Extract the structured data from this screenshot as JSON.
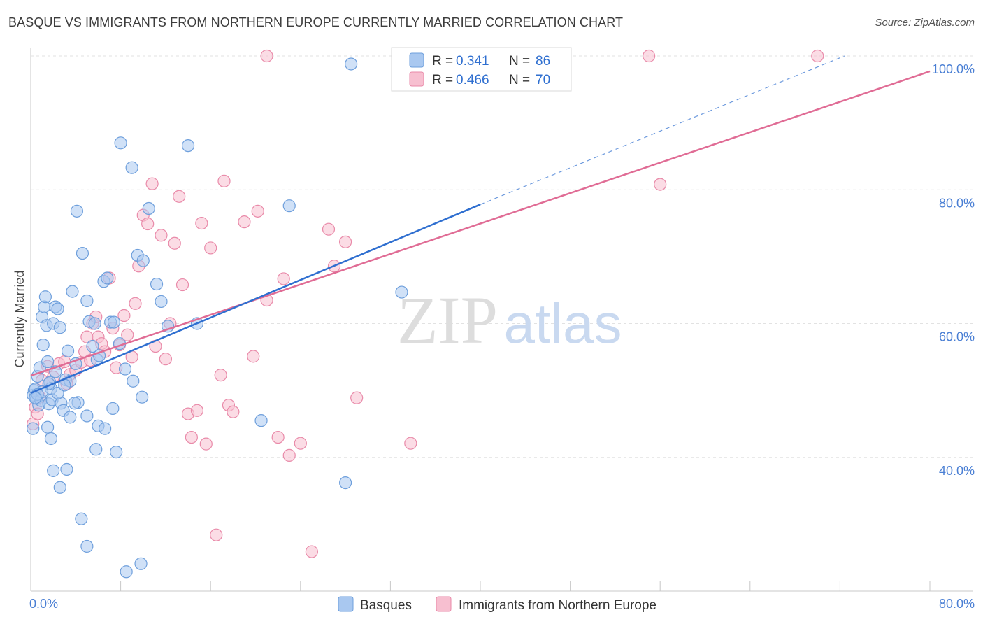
{
  "title": "BASQUE VS IMMIGRANTS FROM NORTHERN EUROPE CURRENTLY MARRIED CORRELATION CHART",
  "source": "Source: ZipAtlas.com",
  "watermark": {
    "zip": "ZIP",
    "atlas": "atlas"
  },
  "colors": {
    "blue_fill": "#a9c8f0",
    "blue_stroke": "#6e9fdc",
    "blue_line": "#2f6fd0",
    "pink_fill": "#f7bfd0",
    "pink_stroke": "#e98aa9",
    "pink_line": "#e06c95",
    "grid": "#e2e2e2",
    "tick_text": "#4a7fd4"
  },
  "legend_top": [
    {
      "r_label": "R =",
      "r_value": "0.341",
      "n_label": "N =",
      "n_value": "86"
    },
    {
      "r_label": "R =",
      "r_value": "0.466",
      "n_label": "N =",
      "n_value": "70"
    }
  ],
  "chart_data": {
    "type": "scatter",
    "title": "BASQUE VS IMMIGRANTS FROM NORTHERN EUROPE CURRENTLY MARRIED CORRELATION CHART",
    "xlabel": "",
    "ylabel": "Currently Married",
    "xlim": [
      0,
      80
    ],
    "ylim": [
      20,
      100
    ],
    "x_tick_labels": [
      "0.0%",
      "80.0%"
    ],
    "y_ticks": [
      40,
      60,
      80,
      100
    ],
    "y_tick_labels": [
      "40.0%",
      "60.0%",
      "80.0%",
      "100.0%"
    ],
    "grid": true,
    "legend_position": "bottom-center",
    "series": [
      {
        "name": "Basques",
        "r": 0.341,
        "n": 86,
        "trend": {
          "x0": 0.0,
          "y0": 49.6,
          "x1": 40.0,
          "y1": 77.8,
          "dashed_to": [
            72.4,
            100.0
          ]
        },
        "points": [
          [
            0.2,
            49.3
          ],
          [
            0.3,
            50.0
          ],
          [
            0.4,
            50.2
          ],
          [
            0.5,
            48.8
          ],
          [
            0.6,
            52.1
          ],
          [
            0.7,
            47.8
          ],
          [
            0.8,
            53.4
          ],
          [
            0.9,
            48.5
          ],
          [
            1.0,
            61.0
          ],
          [
            1.1,
            56.8
          ],
          [
            1.2,
            62.5
          ],
          [
            1.3,
            64.0
          ],
          [
            1.4,
            59.7
          ],
          [
            1.5,
            54.3
          ],
          [
            1.6,
            48.0
          ],
          [
            1.7,
            51.2
          ],
          [
            1.8,
            50.3
          ],
          [
            1.9,
            48.6
          ],
          [
            2.0,
            60.0
          ],
          [
            2.2,
            62.5
          ],
          [
            2.4,
            62.2
          ],
          [
            2.6,
            59.4
          ],
          [
            2.7,
            48.1
          ],
          [
            2.9,
            47.0
          ],
          [
            3.1,
            51.6
          ],
          [
            3.3,
            55.9
          ],
          [
            3.5,
            51.4
          ],
          [
            3.7,
            64.8
          ],
          [
            4.1,
            76.8
          ],
          [
            4.6,
            70.5
          ],
          [
            5.0,
            63.4
          ],
          [
            5.2,
            60.3
          ],
          [
            5.5,
            56.6
          ],
          [
            5.7,
            60.0
          ],
          [
            5.9,
            54.6
          ],
          [
            6.1,
            55.2
          ],
          [
            6.5,
            66.3
          ],
          [
            6.8,
            66.8
          ],
          [
            7.1,
            60.2
          ],
          [
            7.4,
            60.2
          ],
          [
            7.9,
            57.0
          ],
          [
            8.4,
            53.2
          ],
          [
            9.1,
            51.4
          ],
          [
            9.9,
            49.0
          ],
          [
            8.0,
            87.0
          ],
          [
            9.0,
            83.3
          ],
          [
            9.5,
            70.2
          ],
          [
            10.0,
            69.4
          ],
          [
            10.5,
            77.2
          ],
          [
            11.2,
            65.9
          ],
          [
            11.6,
            63.3
          ],
          [
            12.2,
            59.6
          ],
          [
            14.0,
            86.6
          ],
          [
            14.8,
            60.0
          ],
          [
            23.0,
            77.6
          ],
          [
            28.5,
            98.8
          ],
          [
            33.0,
            64.7
          ],
          [
            20.5,
            45.5
          ],
          [
            28.0,
            36.2
          ],
          [
            1.5,
            44.5
          ],
          [
            1.8,
            42.8
          ],
          [
            2.0,
            38.0
          ],
          [
            2.6,
            35.5
          ],
          [
            3.2,
            38.2
          ],
          [
            4.5,
            30.8
          ],
          [
            5.0,
            26.7
          ],
          [
            7.6,
            40.8
          ],
          [
            9.8,
            24.1
          ],
          [
            8.5,
            22.9
          ],
          [
            5.8,
            41.2
          ],
          [
            6.0,
            44.7
          ],
          [
            6.6,
            44.3
          ],
          [
            7.3,
            47.3
          ],
          [
            5.0,
            46.2
          ],
          [
            4.2,
            48.2
          ],
          [
            3.9,
            48.1
          ],
          [
            3.5,
            46.0
          ],
          [
            2.4,
            49.6
          ],
          [
            2.2,
            52.8
          ],
          [
            1.6,
            51.0
          ],
          [
            1.0,
            49.8
          ],
          [
            0.6,
            49.4
          ],
          [
            0.4,
            48.9
          ],
          [
            0.2,
            44.3
          ],
          [
            3.0,
            50.8
          ],
          [
            4.0,
            54.0
          ]
        ]
      },
      {
        "name": "Immigrants from Northern Europe",
        "r": 0.466,
        "n": 70,
        "trend": {
          "x0": 0.0,
          "y0": 52.2,
          "x1": 80.0,
          "y1": 97.7
        },
        "points": [
          [
            0.2,
            45.0
          ],
          [
            0.4,
            47.5
          ],
          [
            0.6,
            46.5
          ],
          [
            0.8,
            49.0
          ],
          [
            1.0,
            51.5
          ],
          [
            1.5,
            53.6
          ],
          [
            2.0,
            52.0
          ],
          [
            2.5,
            54.0
          ],
          [
            3.0,
            54.3
          ],
          [
            3.2,
            51.0
          ],
          [
            3.5,
            52.4
          ],
          [
            4.0,
            53.0
          ],
          [
            4.5,
            54.2
          ],
          [
            4.8,
            55.8
          ],
          [
            5.0,
            58.0
          ],
          [
            5.3,
            54.5
          ],
          [
            5.5,
            60.0
          ],
          [
            5.8,
            61.0
          ],
          [
            6.0,
            58.0
          ],
          [
            6.3,
            57.0
          ],
          [
            6.6,
            55.8
          ],
          [
            7.0,
            66.8
          ],
          [
            7.3,
            59.3
          ],
          [
            7.6,
            53.4
          ],
          [
            7.9,
            56.8
          ],
          [
            8.3,
            61.2
          ],
          [
            8.6,
            58.3
          ],
          [
            9.0,
            55.0
          ],
          [
            9.3,
            63.0
          ],
          [
            9.6,
            68.6
          ],
          [
            10.0,
            76.2
          ],
          [
            10.4,
            74.9
          ],
          [
            10.8,
            80.9
          ],
          [
            11.1,
            56.6
          ],
          [
            11.6,
            73.2
          ],
          [
            12.0,
            54.7
          ],
          [
            12.4,
            60.0
          ],
          [
            12.8,
            72.0
          ],
          [
            13.2,
            79.0
          ],
          [
            13.5,
            65.8
          ],
          [
            14.0,
            46.5
          ],
          [
            14.3,
            43.0
          ],
          [
            14.8,
            47.0
          ],
          [
            15.2,
            75.0
          ],
          [
            15.6,
            42.0
          ],
          [
            16.0,
            71.3
          ],
          [
            16.5,
            28.4
          ],
          [
            16.9,
            52.3
          ],
          [
            17.2,
            81.3
          ],
          [
            17.6,
            47.8
          ],
          [
            18.0,
            46.8
          ],
          [
            19.0,
            75.2
          ],
          [
            19.8,
            55.1
          ],
          [
            20.2,
            76.8
          ],
          [
            21.0,
            63.5
          ],
          [
            22.0,
            43.0
          ],
          [
            22.5,
            66.7
          ],
          [
            23.0,
            40.3
          ],
          [
            24.0,
            42.1
          ],
          [
            25.0,
            25.9
          ],
          [
            26.5,
            74.1
          ],
          [
            27.0,
            68.6
          ],
          [
            28.0,
            72.2
          ],
          [
            29.0,
            48.9
          ],
          [
            33.8,
            42.1
          ],
          [
            21.0,
            100.0
          ],
          [
            33.0,
            100.0
          ],
          [
            55.0,
            100.0
          ],
          [
            70.0,
            100.0
          ],
          [
            56.0,
            80.8
          ]
        ]
      }
    ]
  },
  "bottom_legend": [
    {
      "label": "Basques"
    },
    {
      "label": "Immigrants from Northern Europe"
    }
  ]
}
